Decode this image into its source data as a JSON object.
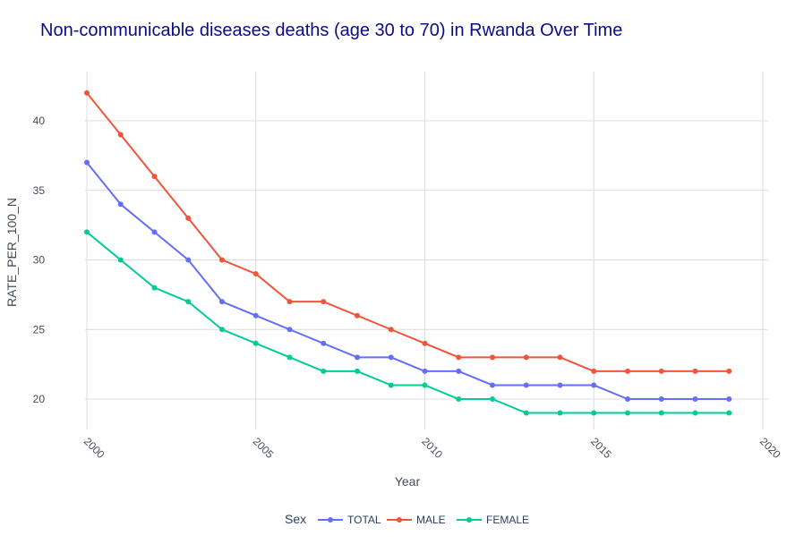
{
  "chart_data": {
    "type": "line",
    "title": "Non-communicable diseases deaths (age 30 to 70) in Rwanda Over Time",
    "xlabel": "Year",
    "ylabel": "RATE_PER_100_N",
    "xlim": [
      2000,
      2020
    ],
    "ylim": [
      18,
      43.5
    ],
    "xticks": [
      2000,
      2005,
      2010,
      2015,
      2020
    ],
    "yticks": [
      20,
      25,
      30,
      35,
      40
    ],
    "x": [
      2000,
      2001,
      2002,
      2003,
      2004,
      2005,
      2006,
      2007,
      2008,
      2009,
      2010,
      2011,
      2012,
      2013,
      2014,
      2015,
      2016,
      2017,
      2018,
      2019
    ],
    "grid": true,
    "legend_title": "Sex",
    "legend_position": "bottom-center",
    "series": [
      {
        "name": "TOTAL",
        "color": "#636efa",
        "values": [
          37,
          34,
          32,
          30,
          27,
          26,
          25,
          24,
          23,
          23,
          22,
          22,
          21,
          21,
          21,
          21,
          20,
          20,
          20,
          20
        ]
      },
      {
        "name": "MALE",
        "color": "#ef553b",
        "values": [
          42,
          39,
          36,
          33,
          30,
          29,
          27,
          27,
          26,
          25,
          24,
          23,
          23,
          23,
          23,
          22,
          22,
          22,
          22,
          22
        ]
      },
      {
        "name": "FEMALE",
        "color": "#00cc96",
        "values": [
          32,
          30,
          28,
          27,
          25,
          24,
          23,
          22,
          22,
          21,
          21,
          20,
          20,
          19,
          19,
          19,
          19,
          19,
          19,
          19
        ]
      }
    ]
  }
}
